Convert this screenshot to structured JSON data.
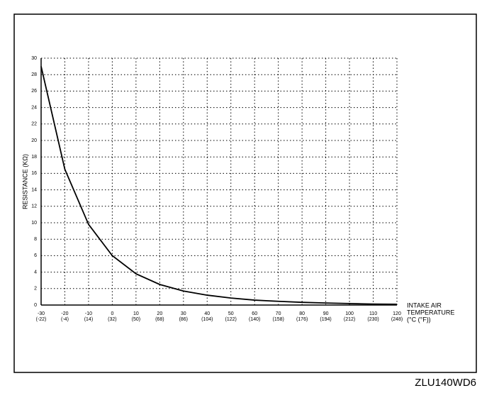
{
  "chart_data": {
    "type": "line",
    "y_label": "RESISTANCE (KΩ)",
    "x_label": [
      "INTAKE AIR",
      "TEMPERATURE",
      "(°C (°F))"
    ],
    "code": "ZLU140WD6",
    "x": [
      -30,
      -20,
      -10,
      0,
      10,
      20,
      30,
      40,
      50,
      60,
      70,
      80,
      90,
      100,
      110,
      120
    ],
    "series": [
      {
        "name": "Resistance",
        "color": "#000000",
        "values": [
          29,
          16.5,
          9.8,
          6,
          3.8,
          2.5,
          1.7,
          1.2,
          0.85,
          0.6,
          0.45,
          0.33,
          0.25,
          0.18,
          0.12,
          0.1
        ]
      }
    ],
    "xlim": [
      -30,
      120
    ],
    "xticks": [
      -30,
      -20,
      -10,
      0,
      10,
      20,
      30,
      40,
      50,
      60,
      70,
      80,
      90,
      100,
      110,
      120
    ],
    "xtick_labels_f": [
      "(-22)",
      "(-4)",
      "(14)",
      "(32)",
      "(50)",
      "(68)",
      "(86)",
      "(104)",
      "(122)",
      "(140)",
      "(158)",
      "(176)",
      "(194)",
      "(212)",
      "(230)",
      "(248)"
    ],
    "ylim": [
      0,
      30
    ],
    "yticks": [
      0,
      2,
      4,
      6,
      8,
      10,
      12,
      14,
      16,
      18,
      20,
      22,
      24,
      26,
      28,
      30
    ],
    "grid": true
  }
}
